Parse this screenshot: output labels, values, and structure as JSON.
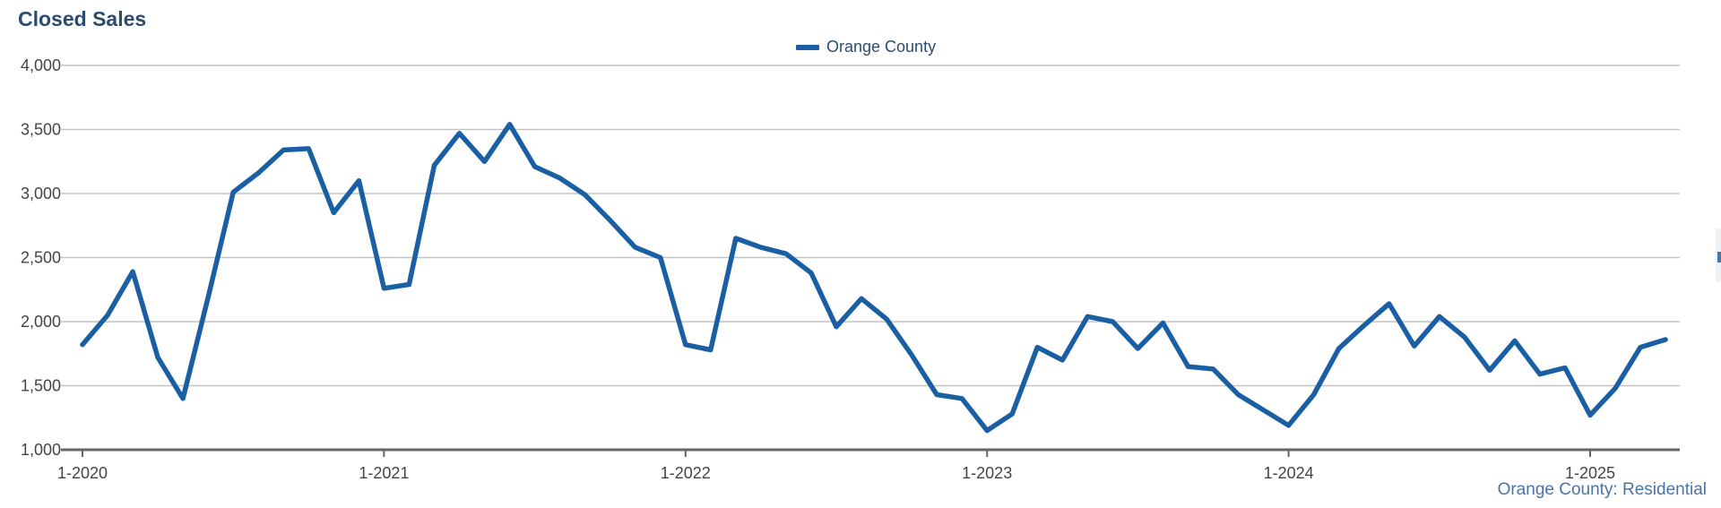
{
  "chart_data": {
    "type": "line",
    "title": "Closed Sales",
    "xlabel": "",
    "ylabel": "",
    "x_tick_labels": [
      "1-2020",
      "1-2021",
      "1-2022",
      "1-2023",
      "1-2024",
      "1-2025"
    ],
    "y_tick_labels": [
      "1,000",
      "1,500",
      "2,000",
      "2,500",
      "3,000",
      "3,500",
      "4,000"
    ],
    "ylim": [
      1000,
      4000
    ],
    "y_ticks": [
      1000,
      1500,
      2000,
      2500,
      3000,
      3500,
      4000
    ],
    "x_start": "2020-01",
    "x_end": "2025-04",
    "grid": "horizontal",
    "legend_position": "top-center",
    "series": [
      {
        "name": "Orange County",
        "color": "#1a5fa3",
        "x": [
          "2020-01",
          "2020-02",
          "2020-03",
          "2020-04",
          "2020-05",
          "2020-06",
          "2020-07",
          "2020-08",
          "2020-09",
          "2020-10",
          "2020-11",
          "2020-12",
          "2021-01",
          "2021-02",
          "2021-03",
          "2021-04",
          "2021-05",
          "2021-06",
          "2021-07",
          "2021-08",
          "2021-09",
          "2021-10",
          "2021-11",
          "2021-12",
          "2022-01",
          "2022-02",
          "2022-03",
          "2022-04",
          "2022-05",
          "2022-06",
          "2022-07",
          "2022-08",
          "2022-09",
          "2022-10",
          "2022-11",
          "2022-12",
          "2023-01",
          "2023-02",
          "2023-03",
          "2023-04",
          "2023-05",
          "2023-06",
          "2023-07",
          "2023-08",
          "2023-09",
          "2023-10",
          "2023-11",
          "2023-12",
          "2024-01",
          "2024-02",
          "2024-03",
          "2024-04",
          "2024-05",
          "2024-06",
          "2024-07",
          "2024-08",
          "2024-09",
          "2024-10",
          "2024-11",
          "2024-12",
          "2025-01",
          "2025-02",
          "2025-03",
          "2025-04"
        ],
        "values": [
          1820,
          2050,
          2390,
          1720,
          1400,
          2190,
          3010,
          3160,
          3340,
          3350,
          2850,
          3100,
          2260,
          2290,
          3220,
          3470,
          3250,
          3540,
          3210,
          3120,
          2990,
          2790,
          2580,
          2500,
          1820,
          1780,
          2650,
          2580,
          2530,
          2380,
          1960,
          2180,
          2020,
          1740,
          1430,
          1400,
          1150,
          1280,
          1800,
          1700,
          2040,
          2000,
          1790,
          1990,
          1650,
          1630,
          1430,
          1310,
          1190,
          1430,
          1790,
          1970,
          2140,
          1810,
          2040,
          1880,
          1620,
          1850,
          1590,
          1640,
          1270,
          1480,
          1800,
          1860
        ]
      }
    ]
  },
  "footnote": "Orange County: Residential"
}
